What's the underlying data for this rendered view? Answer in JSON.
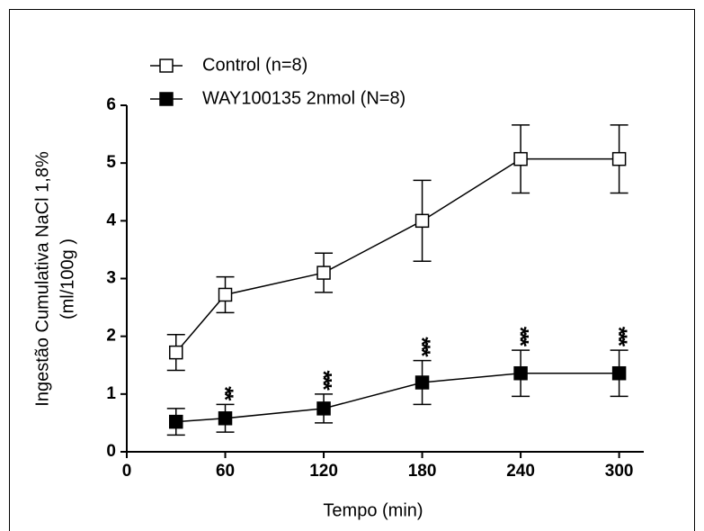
{
  "chart_data": {
    "type": "line",
    "xlabel": "Tempo (min)",
    "ylabel": [
      "Ingestão Cumulativa NaCl 1,8%",
      "(ml/100g )"
    ],
    "x": [
      30,
      60,
      120,
      180,
      240,
      300
    ],
    "series": [
      {
        "name": "Control (n=8)",
        "color": "#000000",
        "marker_fill": "#ffffff",
        "values": [
          1.72,
          2.72,
          3.1,
          4.0,
          5.07,
          5.07
        ],
        "errors": [
          0.31,
          0.31,
          0.34,
          0.7,
          0.59,
          0.59
        ]
      },
      {
        "name": "WAY100135 2nmol (N=8)",
        "color": "#000000",
        "marker_fill": "#000000",
        "values": [
          0.52,
          0.58,
          0.75,
          1.2,
          1.36,
          1.36
        ],
        "errors": [
          0.23,
          0.24,
          0.25,
          0.38,
          0.4,
          0.4
        ]
      }
    ],
    "annotations": [
      {
        "x": 60,
        "label": "**"
      },
      {
        "x": 120,
        "label": "***"
      },
      {
        "x": 180,
        "label": "***"
      },
      {
        "x": 240,
        "label": "***"
      },
      {
        "x": 300,
        "label": "***"
      }
    ],
    "xlim": [
      0,
      315
    ],
    "xticks": [
      0,
      60,
      120,
      180,
      240,
      300
    ],
    "ylim": [
      0,
      6
    ],
    "yticks": [
      0,
      1,
      2,
      3,
      4,
      5,
      6
    ],
    "legend": "upper left",
    "grid": false
  }
}
